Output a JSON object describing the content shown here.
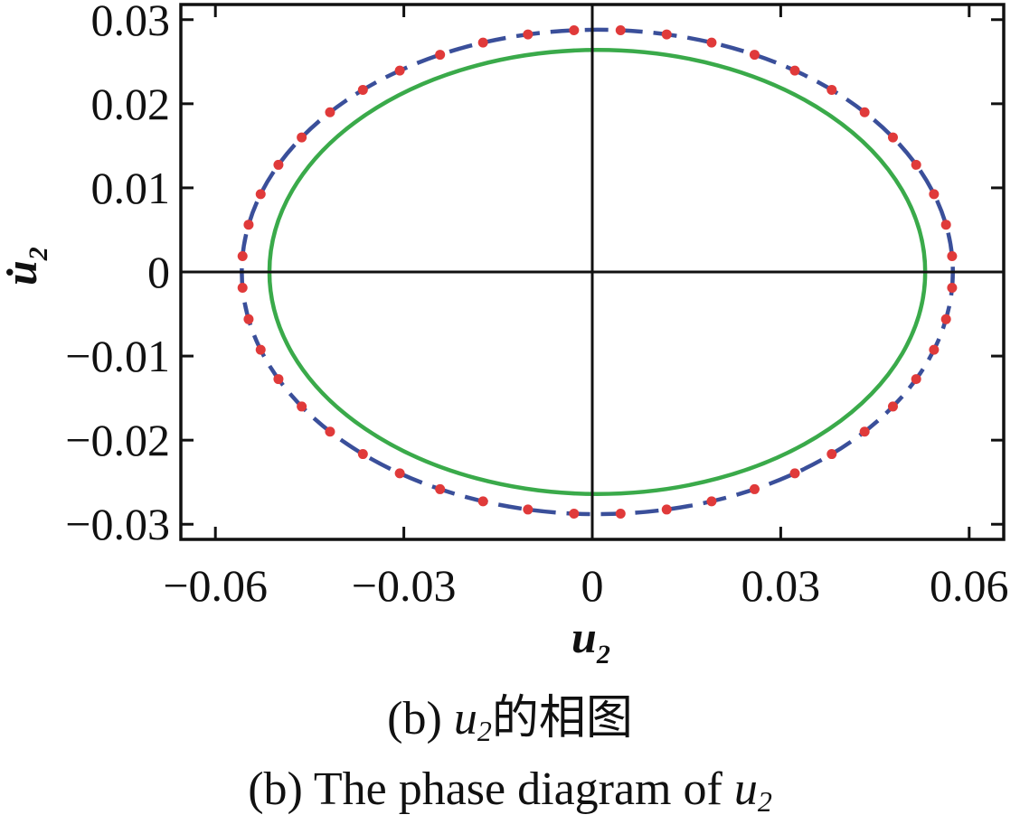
{
  "chart_data": {
    "type": "line",
    "xlabel": "u",
    "xlabel_subscript": "2",
    "ylabel": "u̇",
    "ylabel_subscript": "2",
    "xlim": [
      -0.0655,
      0.0655
    ],
    "ylim": [
      -0.0318,
      0.0318
    ],
    "x_ticks": [
      -0.06,
      -0.03,
      0,
      0.03,
      0.06
    ],
    "x_tick_labels": [
      "−0.06",
      "−0.03",
      "0",
      "0.03",
      "0.06"
    ],
    "y_ticks": [
      -0.03,
      -0.02,
      -0.01,
      0,
      0.01,
      0.02,
      0.03
    ],
    "y_tick_labels": [
      "−0.03",
      "−0.02",
      "−0.01",
      "0",
      "0.01",
      "0.02",
      "0.03"
    ],
    "grid": false,
    "zero_lines": true,
    "series": [
      {
        "style": "dashed",
        "color": "#3a4f9a",
        "curve": "ellipse",
        "center": [
          0.0008,
          0
        ],
        "radius_x": 0.0566,
        "radius_y": 0.0288
      },
      {
        "style": "dotted-markers",
        "color": "#e03a3a",
        "curve": "ellipse",
        "center": [
          0.0008,
          0
        ],
        "radius_x": 0.0566,
        "radius_y": 0.0288,
        "points": 48
      },
      {
        "style": "solid",
        "color": "#3aaa4a",
        "curve": "ellipse",
        "center": [
          0.0008,
          0
        ],
        "radius_x": 0.0522,
        "radius_y": 0.0264
      }
    ]
  },
  "captions": {
    "cn_prefix": "(b) ",
    "cn_var": "u",
    "cn_sub": "2",
    "cn_suffix": "的相图",
    "en_prefix": "(b) The phase diagram of ",
    "en_var": "u",
    "en_sub": "2"
  }
}
